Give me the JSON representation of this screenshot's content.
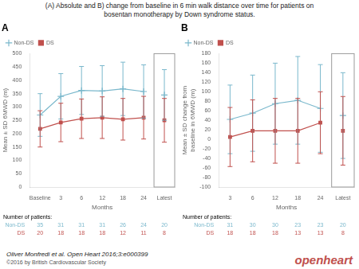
{
  "title": "(A) Absolute and B) change from baseline in 6 min walk distance over time for patients on\nbosentan monotherapy by Down syndrome status.",
  "annotations": [
    {
      "text": "Oliver Monfredi et al. Open Heart 2016;3:e000399"
    },
    {
      "text": "©2016 by British Cardiovascular Society"
    },
    {
      "text": "openheart",
      "color": "#c0504d"
    }
  ],
  "chart_data": [
    {
      "type": "line",
      "title": "A",
      "x_label": "Months",
      "y_label": "Mean ± SD 6MWD (m)",
      "categories": [
        "Baseline",
        "3",
        "6",
        "12",
        "18",
        "24"
      ],
      "latest_label": "Latest",
      "patients_label": "Number of patients:",
      "series": [
        {
          "name": "Non-DS",
          "color": "#7ab8cc",
          "marker": "plus",
          "values": [
            270,
            340,
            362,
            360,
            368,
            358
          ],
          "error": [
            80,
            85,
            90,
            95,
            100,
            100
          ],
          "latest": 345,
          "latest_error": 95,
          "patients": [
            35,
            31,
            31,
            31,
            26,
            24
          ],
          "latest_patients": 20
        },
        {
          "name": "DS",
          "color": "#c0504d",
          "marker": "square",
          "values": [
            218,
            242,
            256,
            260,
            254,
            260
          ],
          "error": [
            68,
            72,
            74,
            78,
            78,
            80
          ],
          "latest": 250,
          "latest_error": 82,
          "patients": [
            20,
            18,
            18,
            18,
            12,
            11
          ],
          "latest_patients": 8
        }
      ],
      "ylim": [
        0,
        500
      ],
      "yticks": [
        0,
        50,
        100,
        150,
        200,
        250,
        300,
        350,
        400,
        450,
        500
      ],
      "grid": false,
      "legend": "upper left"
    },
    {
      "type": "line",
      "title": "B",
      "x_label": "Months",
      "y_label": "Mean ± SD change from\nbaseline in 6MWD (m)",
      "categories": [
        "3",
        "6",
        "12",
        "18",
        "24"
      ],
      "latest_label": "Latest",
      "patients_label": "Number of patients:",
      "series": [
        {
          "name": "Non-DS",
          "color": "#7ab8cc",
          "marker": "plus",
          "values": [
            42,
            55,
            75,
            82,
            65
          ],
          "error": [
            72,
            80,
            85,
            92,
            92
          ],
          "latest": 50,
          "latest_error": 90,
          "patients": [
            31,
            30,
            30,
            23,
            23
          ],
          "latest_patients": 20
        },
        {
          "name": "DS",
          "color": "#c0504d",
          "marker": "square",
          "values": [
            5,
            18,
            18,
            18,
            35
          ],
          "error": [
            62,
            65,
            68,
            68,
            65
          ],
          "latest": 18,
          "latest_error": 72,
          "patients": [
            18,
            18,
            18,
            13,
            13
          ],
          "latest_patients": 8
        }
      ],
      "ylim": [
        -100,
        180
      ],
      "yticks": [
        -100,
        -80,
        -60,
        -40,
        -20,
        0,
        20,
        40,
        60,
        80,
        100,
        120,
        140,
        160,
        180
      ],
      "grid": false,
      "legend": "upper left"
    }
  ]
}
